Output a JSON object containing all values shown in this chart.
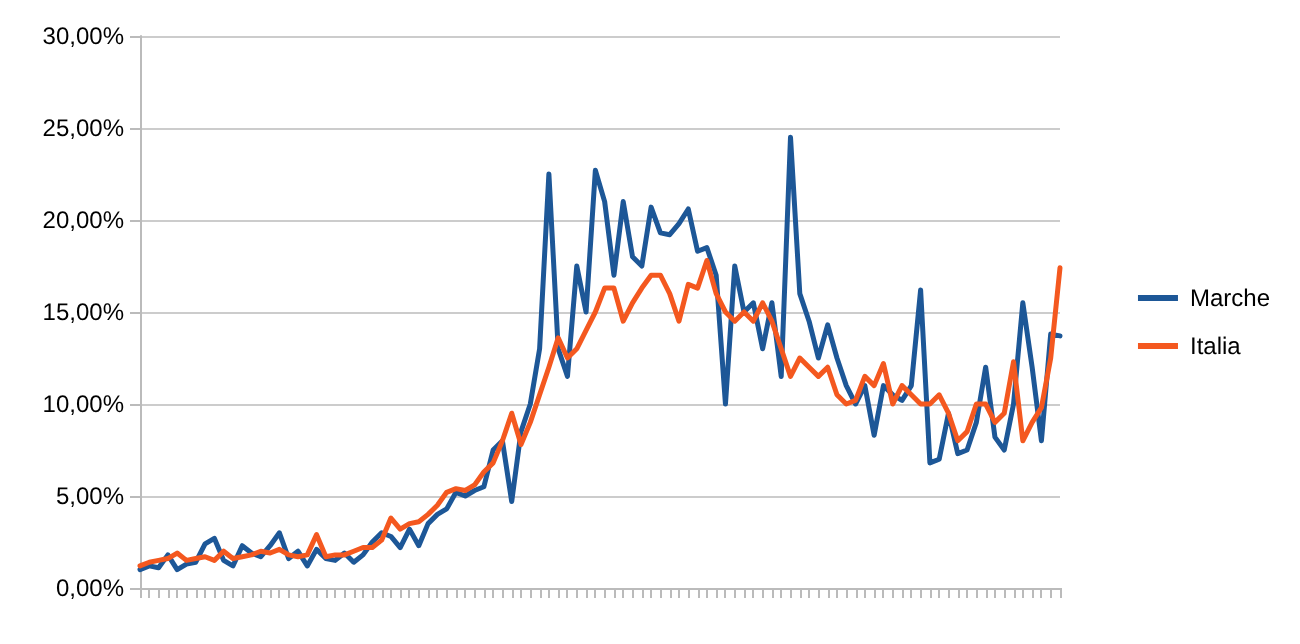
{
  "chart_data": {
    "type": "line",
    "categories": [
      null,
      null,
      null,
      null,
      null,
      null,
      null,
      null,
      null,
      null,
      null,
      null,
      null,
      null,
      null,
      null,
      null,
      null,
      null,
      null,
      null,
      null,
      null,
      null,
      null,
      null,
      null,
      null,
      null,
      null,
      null,
      null,
      null,
      null,
      null,
      null,
      null,
      null,
      null,
      null,
      null,
      null,
      null,
      null,
      null,
      null,
      null,
      null,
      null,
      null,
      null,
      null,
      null,
      null,
      null,
      null,
      null,
      null,
      null,
      null,
      null,
      null,
      null,
      null,
      null,
      null,
      null,
      null,
      null,
      null,
      null,
      null,
      null,
      null,
      null,
      null,
      null,
      null,
      null,
      null,
      null,
      null,
      null,
      null,
      null,
      null,
      null,
      null,
      null,
      null,
      null,
      null,
      null,
      null,
      null,
      null,
      null,
      null,
      null,
      null
    ],
    "series": [
      {
        "name": "Marche",
        "color": "#1d5797",
        "values": [
          1.0,
          1.2,
          1.1,
          1.8,
          1.0,
          1.3,
          1.4,
          2.4,
          2.7,
          1.5,
          1.2,
          2.3,
          1.9,
          1.7,
          2.3,
          3.0,
          1.6,
          2.0,
          1.2,
          2.1,
          1.6,
          1.5,
          1.9,
          1.4,
          1.8,
          2.5,
          3.0,
          2.8,
          2.2,
          3.2,
          2.3,
          3.5,
          4.0,
          4.3,
          5.2,
          5.0,
          5.3,
          5.5,
          7.5,
          8.0,
          4.7,
          8.5,
          10.0,
          13.0,
          22.5,
          13.0,
          11.5,
          17.5,
          15.0,
          22.7,
          21.0,
          17.0,
          21.0,
          18.0,
          17.5,
          20.7,
          19.3,
          19.2,
          19.8,
          20.6,
          18.3,
          18.5,
          17.0,
          10.0,
          17.5,
          15.0,
          15.5,
          13.0,
          15.5,
          11.5,
          24.5,
          16.0,
          14.5,
          12.5,
          14.3,
          12.5,
          11.0,
          10.0,
          11.0,
          8.3,
          11.0,
          10.5,
          10.2,
          11.0,
          16.2,
          6.8,
          7.0,
          9.5,
          7.3,
          7.5,
          9.0,
          12.0,
          8.2,
          7.5,
          10.0,
          15.5,
          12.0,
          8.0,
          13.8,
          13.7
        ]
      },
      {
        "name": "Italia",
        "color": "#f4581f",
        "values": [
          1.2,
          1.4,
          1.5,
          1.6,
          1.9,
          1.5,
          1.6,
          1.7,
          1.5,
          2.0,
          1.6,
          1.7,
          1.8,
          2.0,
          1.9,
          2.1,
          1.8,
          1.7,
          1.8,
          2.9,
          1.7,
          1.8,
          1.8,
          2.0,
          2.2,
          2.2,
          2.6,
          3.8,
          3.2,
          3.5,
          3.6,
          4.0,
          4.5,
          5.2,
          5.4,
          5.3,
          5.6,
          6.3,
          6.8,
          8.0,
          9.5,
          7.8,
          9.0,
          10.5,
          12.0,
          13.6,
          12.5,
          13.0,
          14.0,
          15.0,
          16.3,
          16.3,
          14.5,
          15.5,
          16.3,
          17.0,
          17.0,
          16.0,
          14.5,
          16.5,
          16.3,
          17.8,
          16.0,
          15.0,
          14.5,
          15.0,
          14.5,
          15.5,
          14.5,
          13.0,
          11.5,
          12.5,
          12.0,
          11.5,
          12.0,
          10.5,
          10.0,
          10.2,
          11.5,
          11.0,
          12.2,
          10.0,
          11.0,
          10.5,
          10.0,
          10.0,
          10.5,
          9.5,
          8.0,
          8.5,
          10.0,
          10.0,
          9.0,
          9.5,
          12.3,
          8.0,
          9.0,
          9.8,
          12.5,
          17.4
        ]
      }
    ],
    "ylim": [
      0,
      30
    ],
    "yticks": [
      {
        "value": 0,
        "label": "0,00%"
      },
      {
        "value": 5,
        "label": "5,00%"
      },
      {
        "value": 10,
        "label": "10,00%"
      },
      {
        "value": 15,
        "label": "15,00%"
      },
      {
        "value": 20,
        "label": "20,00%"
      },
      {
        "value": 25,
        "label": "25,00%"
      },
      {
        "value": 30,
        "label": "30,00%"
      }
    ],
    "grid": "y",
    "legend": "right",
    "marker": "none",
    "line_style": "solid"
  }
}
